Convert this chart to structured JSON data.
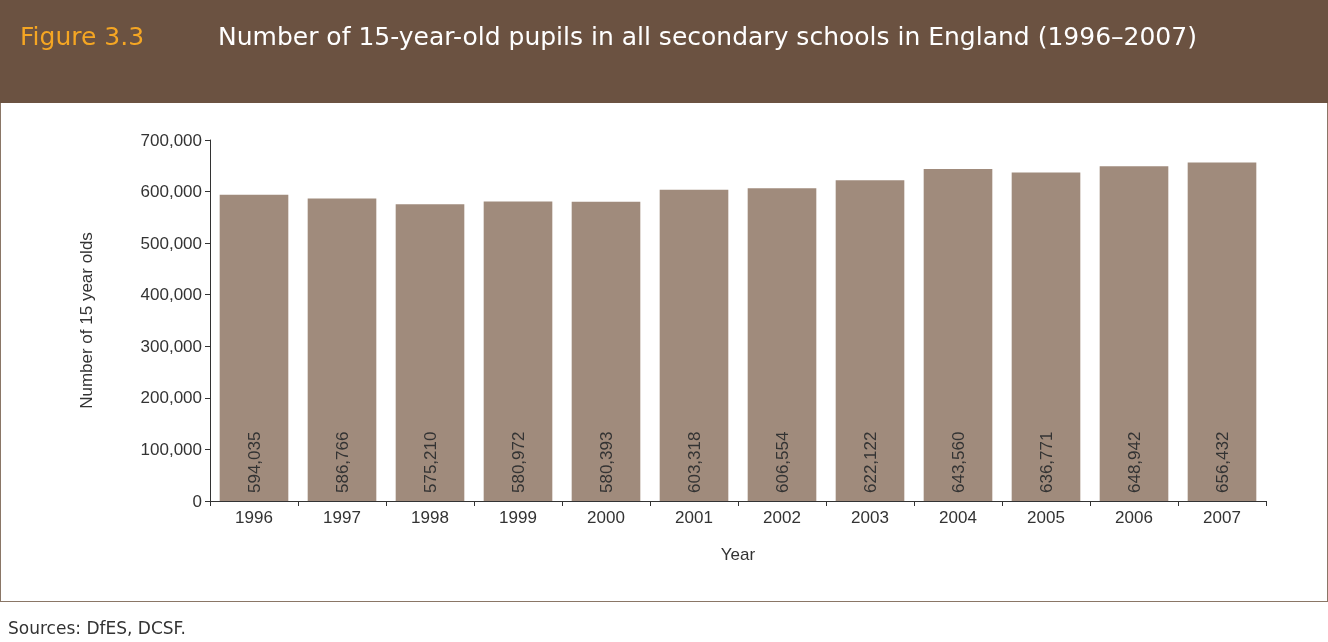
{
  "chart_data": {
    "type": "bar",
    "title": "Number of 15-year-old pupils in all secondary schools in England (1996–2007)",
    "xlabel": "Year",
    "ylabel": "Number of 15 year olds",
    "annotations": [
      "Figure 3.3",
      "Sources: DfES, DCSF."
    ],
    "categories": [
      "1996",
      "1997",
      "1998",
      "1999",
      "2000",
      "2001",
      "2002",
      "2003",
      "2004",
      "2005",
      "2006",
      "2007"
    ],
    "values": [
      594035,
      586766,
      575210,
      580972,
      580393,
      603318,
      606554,
      622122,
      643560,
      636771,
      648942,
      656432
    ],
    "value_labels": [
      "594,035",
      "586,766",
      "575,210",
      "580,972",
      "580,393",
      "603,318",
      "606,554",
      "622,122",
      "643,560",
      "636,771",
      "648,942",
      "656,432"
    ],
    "color": "#a08b7c",
    "ylim": [
      0,
      700000
    ],
    "yticks": [
      0,
      {
        "value": 100000,
        "label": "100,000"
      },
      {
        "value": 200000,
        "label": "200,000"
      },
      {
        "value": 300000,
        "label": "300,000"
      },
      {
        "value": 400000,
        "label": "400,000"
      },
      {
        "value": 500000,
        "label": "500,000"
      },
      {
        "value": 600000,
        "label": "600,000"
      },
      {
        "value": 700000,
        "label": "700,000"
      }
    ],
    "grid": false
  }
}
